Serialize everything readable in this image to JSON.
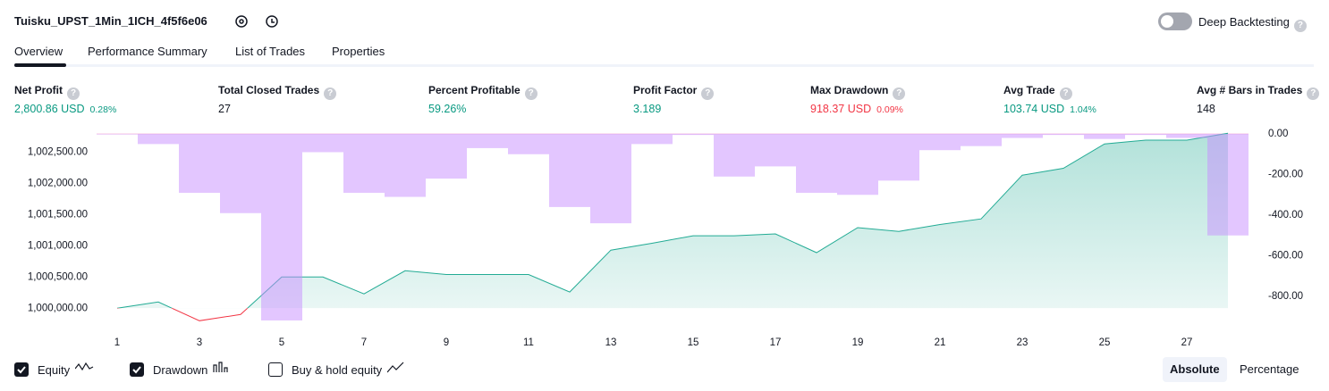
{
  "header": {
    "title": "Tuisku_UPST_1Min_1ICH_4f5f6e06",
    "toggle_label": "Deep Backtesting"
  },
  "tabs": [
    "Overview",
    "Performance Summary",
    "List of Trades",
    "Properties"
  ],
  "metrics": [
    {
      "label": "Net Profit",
      "value": "2,800.86 USD",
      "pct": "0.28%",
      "tone": "up"
    },
    {
      "label": "Total Closed Trades",
      "value": "27",
      "tone": "neutral"
    },
    {
      "label": "Percent Profitable",
      "value": "59.26%",
      "tone": "up"
    },
    {
      "label": "Profit Factor",
      "value": "3.189",
      "tone": "up"
    },
    {
      "label": "Max Drawdown",
      "value": "918.37 USD",
      "pct": "0.09%",
      "tone": "down"
    },
    {
      "label": "Avg Trade",
      "value": "103.74 USD",
      "pct": "1.04%",
      "tone": "up"
    },
    {
      "label": "Avg # Bars in Trades",
      "value": "148",
      "tone": "neutral"
    }
  ],
  "chart_data": {
    "type": "equity-drawdown",
    "x": [
      1,
      2,
      3,
      4,
      5,
      6,
      7,
      8,
      9,
      10,
      11,
      12,
      13,
      14,
      15,
      16,
      17,
      18,
      19,
      20,
      21,
      22,
      23,
      24,
      25,
      26,
      27,
      28
    ],
    "xlim": [
      0.5,
      28.5
    ],
    "xticks": [
      1,
      3,
      5,
      7,
      9,
      11,
      13,
      15,
      17,
      19,
      21,
      23,
      25,
      27
    ],
    "ylim": [
      999790,
      1002790
    ],
    "yticks": [
      {
        "value": 1000000,
        "label": "1,000,000.00"
      },
      {
        "value": 1000500,
        "label": "1,000,500.00"
      },
      {
        "value": 1001000,
        "label": "1,001,000.00"
      },
      {
        "value": 1001500,
        "label": "1,001,500.00"
      },
      {
        "value": 1002000,
        "label": "1,002,000.00"
      },
      {
        "value": 1002500,
        "label": "1,002,500.00"
      }
    ],
    "y2lim": [
      -923,
      0
    ],
    "y2ticks": [
      {
        "value": 0,
        "label": "0.00"
      },
      {
        "value": -200,
        "label": "-200.00"
      },
      {
        "value": -400,
        "label": "-400.00"
      },
      {
        "value": -600,
        "label": "-600.00"
      },
      {
        "value": -800,
        "label": "-800.00"
      }
    ],
    "series": [
      {
        "name": "Equity",
        "color": "#22ab94",
        "down_color": "#f23645",
        "checked": true,
        "values": [
          1000000,
          1000100,
          999800,
          999900,
          1000500,
          1000500,
          1000230,
          1000600,
          1000540,
          1000540,
          1000540,
          1000260,
          1000930,
          1001040,
          1001160,
          1001160,
          1001190,
          1000890,
          1001290,
          1001230,
          1001340,
          1001430,
          1002130,
          1002240,
          1002630,
          1002690,
          1002690,
          1002800
        ]
      },
      {
        "name": "Drawdown",
        "color": "#c88dff",
        "axis": "y2",
        "checked": true,
        "values": [
          0,
          -50,
          -290,
          -390,
          -918.37,
          -90,
          -290,
          -310,
          -220,
          -70,
          -100,
          -360,
          -440,
          -50,
          -5,
          -210,
          -160,
          -290,
          -300,
          -230,
          -80,
          -60,
          -20,
          -5,
          -25,
          -5,
          -20,
          -500
        ]
      }
    ],
    "extra_legend": {
      "name": "Buy & hold equity",
      "checked": false
    }
  },
  "view_modes": {
    "options": [
      "Absolute",
      "Percentage"
    ],
    "selected": 0
  }
}
